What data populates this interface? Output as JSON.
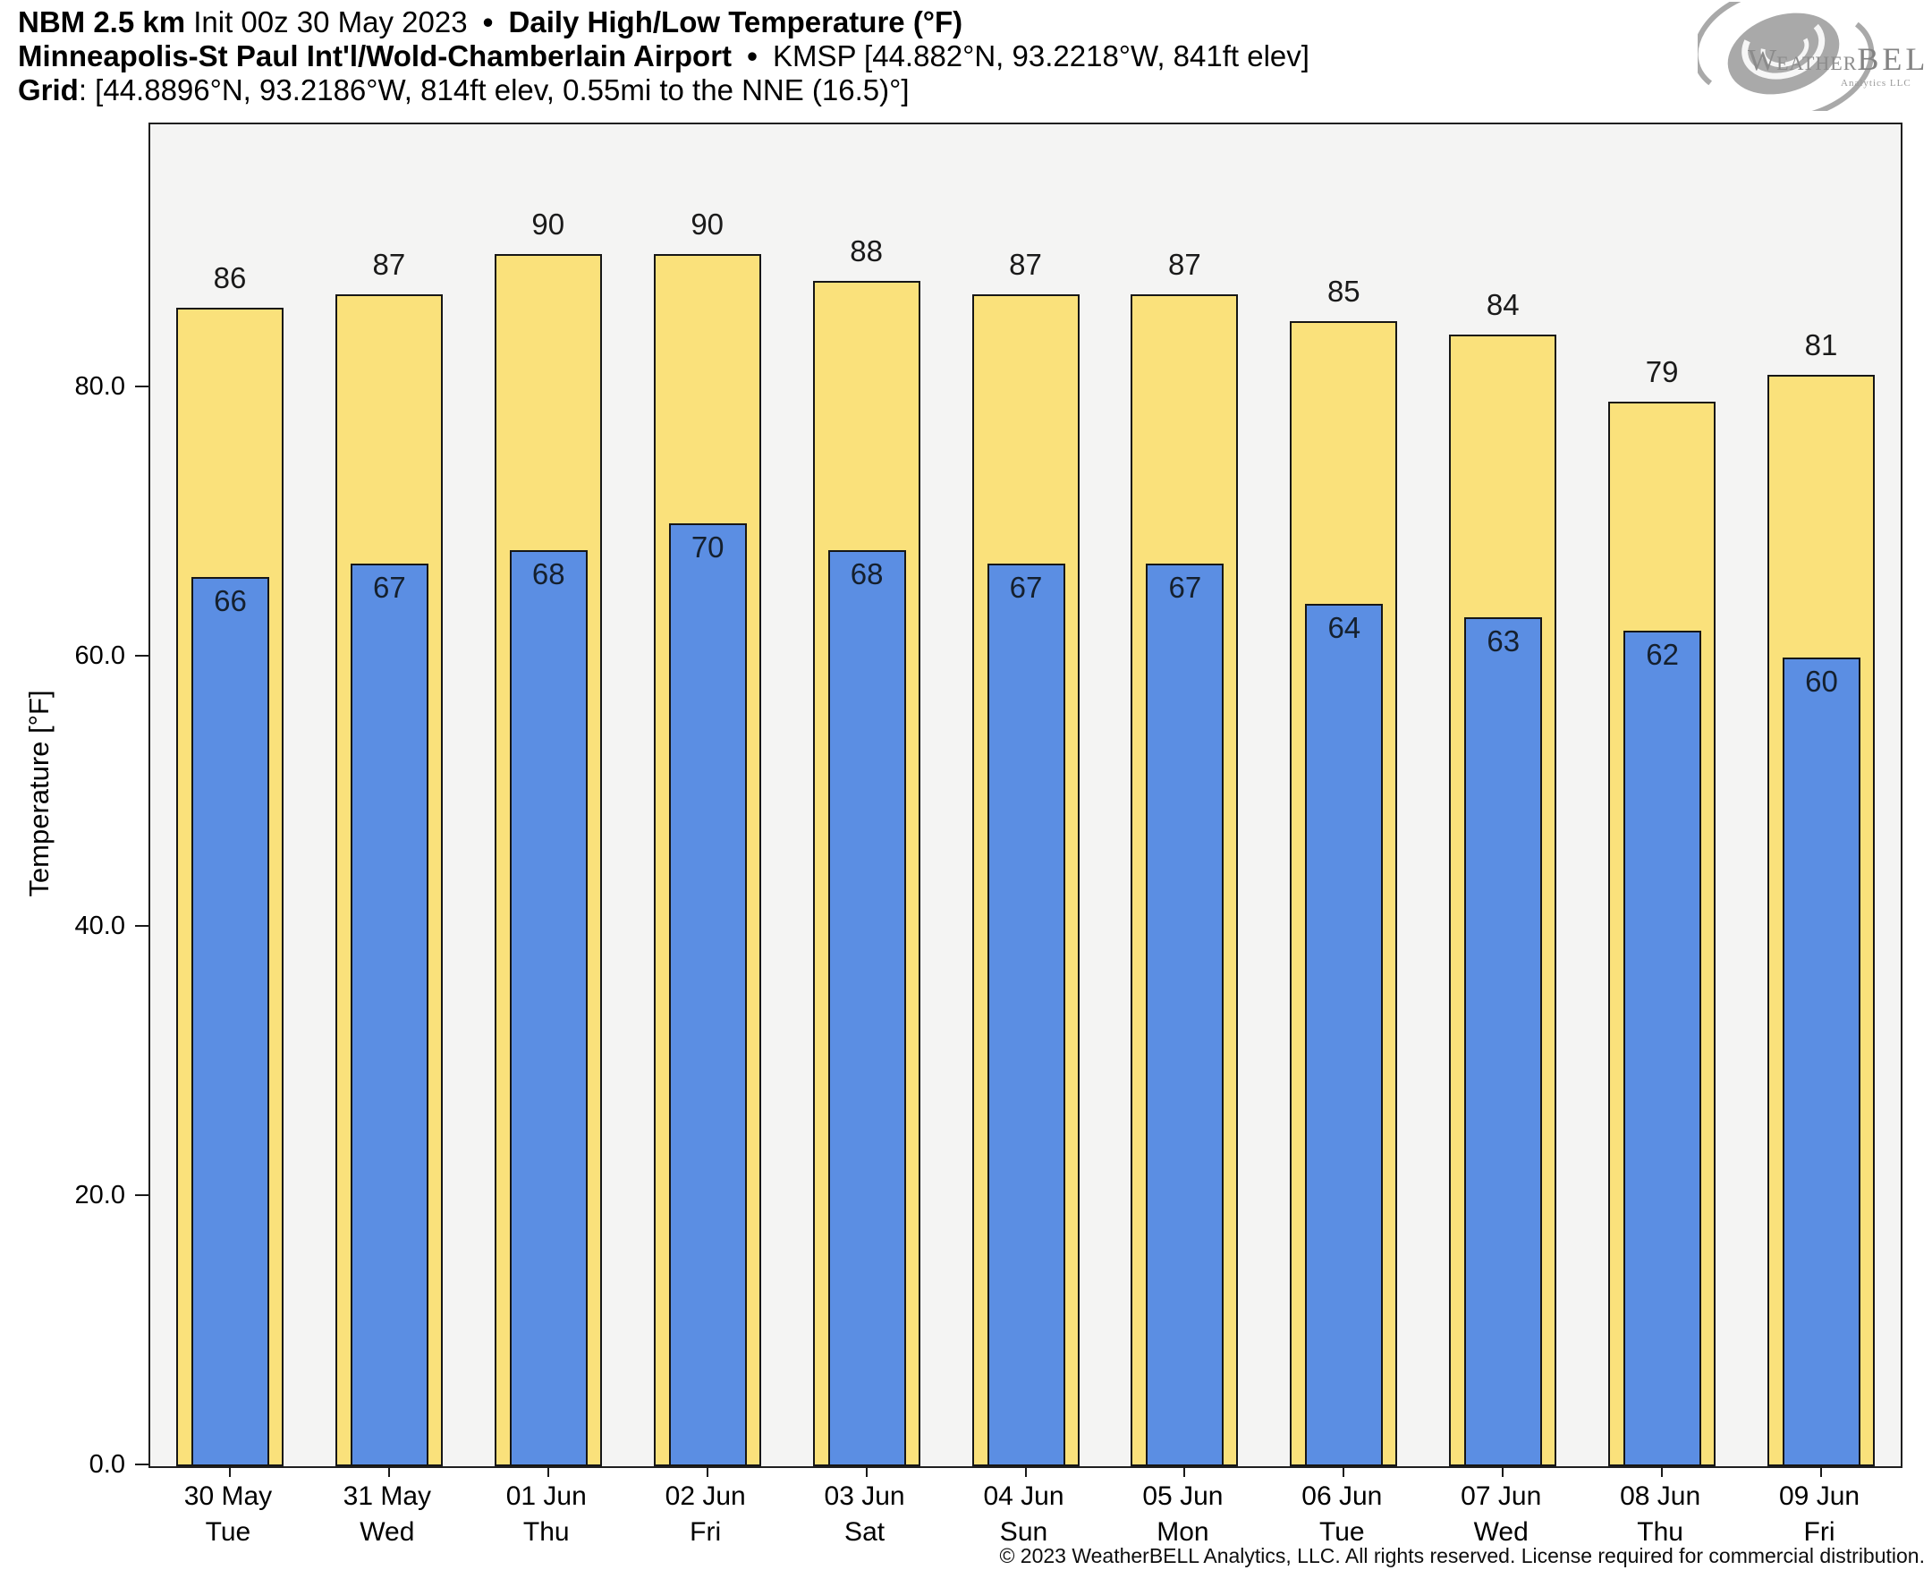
{
  "header": {
    "line1": {
      "model": "NBM 2.5 km",
      "init": "Init 00z 30 May 2023",
      "bullet": "•",
      "product": "Daily High/Low Temperature (°F)"
    },
    "line2": {
      "station": "Minneapolis-St Paul Int'l/Wold-Chamberlain Airport",
      "bullet": "•",
      "meta": "KMSP [44.882°N, 93.2218°W, 841ft elev]"
    },
    "line3": {
      "label": "Grid",
      "value": ": [44.8896°N, 93.2186°W, 814ft elev, 0.55mi to the NNE (16.5)°]"
    }
  },
  "logo": {
    "brand_weather": "Weather",
    "brand_bell": "BELL",
    "brand_sub": "Analytics LLC"
  },
  "chart_data": {
    "type": "bar",
    "title": "Daily High/Low Temperature (°F)",
    "categories": [
      "30 May",
      "31 May",
      "01 Jun",
      "02 Jun",
      "03 Jun",
      "04 Jun",
      "05 Jun",
      "06 Jun",
      "07 Jun",
      "08 Jun",
      "09 Jun"
    ],
    "weekdays": [
      "Tue",
      "Wed",
      "Thu",
      "Fri",
      "Sat",
      "Sun",
      "Mon",
      "Tue",
      "Wed",
      "Thu",
      "Fri"
    ],
    "series": [
      {
        "name": "High",
        "color": "#fae17b",
        "values": [
          86,
          87,
          90,
          90,
          88,
          87,
          87,
          85,
          84,
          79,
          81
        ]
      },
      {
        "name": "Low",
        "color": "#5b8ee3",
        "values": [
          66,
          67,
          68,
          70,
          68,
          67,
          67,
          64,
          63,
          62,
          60
        ]
      }
    ],
    "xlabel": "",
    "ylabel": "Temperature [°F]",
    "yticks": [
      0,
      20,
      40,
      60,
      80
    ],
    "ytick_labels": [
      "0.0",
      "20.0",
      "40.0",
      "60.0",
      "80.0"
    ],
    "ylim": [
      0,
      99.6
    ],
    "grid": false,
    "legend": "none",
    "plot_background": "#f4f4f3",
    "bar_outline": "#161616",
    "value_labels": "high above bar, low inside top of blue bar"
  },
  "footer": {
    "copyright": "© 2023 WeatherBELL Analytics, LLC. All rights reserved. License required for commercial distribution."
  }
}
